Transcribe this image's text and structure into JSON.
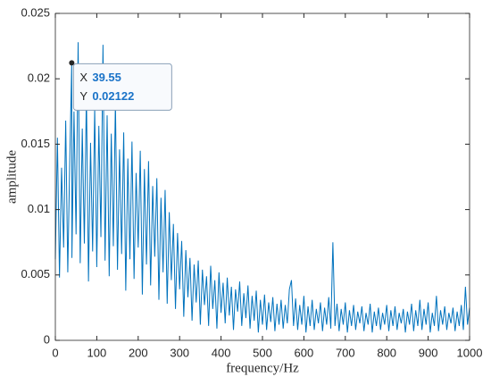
{
  "chart_data": {
    "type": "line",
    "xlabel": "frequency/Hz",
    "ylabel": "amplitude",
    "xlim": [
      0,
      1000
    ],
    "ylim": [
      0,
      0.025
    ],
    "xticks": [
      0,
      100,
      200,
      300,
      400,
      500,
      600,
      700,
      800,
      900,
      1000
    ],
    "yticks": [
      0,
      0.005,
      0.01,
      0.015,
      0.02,
      0.025
    ],
    "grid": false,
    "datatip": {
      "x_label": "X",
      "x": 39.55,
      "y_label": "Y",
      "y": 0.02122
    },
    "series": [
      {
        "color": "#0072bd",
        "x": [
          0,
          5,
          10,
          15,
          20,
          25,
          30,
          35,
          39.55,
          40,
          45,
          50,
          55,
          60,
          65,
          70,
          75,
          80,
          85,
          90,
          95,
          100,
          105,
          110,
          115,
          120,
          125,
          130,
          135,
          140,
          145,
          150,
          155,
          160,
          165,
          170,
          175,
          180,
          185,
          190,
          195,
          200,
          205,
          210,
          215,
          220,
          225,
          230,
          235,
          240,
          245,
          250,
          255,
          260,
          265,
          270,
          275,
          280,
          285,
          290,
          295,
          300,
          305,
          310,
          315,
          320,
          325,
          330,
          335,
          340,
          345,
          350,
          355,
          360,
          365,
          370,
          375,
          380,
          385,
          390,
          395,
          400,
          405,
          410,
          415,
          420,
          425,
          430,
          435,
          440,
          445,
          450,
          455,
          460,
          465,
          470,
          475,
          480,
          485,
          490,
          495,
          500,
          505,
          510,
          515,
          520,
          525,
          530,
          535,
          540,
          545,
          550,
          555,
          560,
          565,
          570,
          575,
          580,
          585,
          590,
          595,
          600,
          605,
          610,
          615,
          620,
          625,
          630,
          635,
          640,
          645,
          650,
          655,
          660,
          665,
          670,
          675,
          680,
          685,
          690,
          695,
          700,
          705,
          710,
          715,
          720,
          725,
          730,
          735,
          740,
          745,
          750,
          755,
          760,
          765,
          770,
          775,
          780,
          785,
          790,
          795,
          800,
          805,
          810,
          815,
          820,
          825,
          830,
          835,
          840,
          845,
          850,
          855,
          860,
          865,
          870,
          875,
          880,
          885,
          890,
          895,
          900,
          905,
          910,
          915,
          920,
          925,
          930,
          935,
          940,
          945,
          950,
          955,
          960,
          965,
          970,
          975,
          980,
          985,
          990,
          995,
          1000
        ],
        "values": [
          0.0062,
          0.0155,
          0.0048,
          0.0132,
          0.0071,
          0.0168,
          0.0052,
          0.0141,
          0.02122,
          0.0063,
          0.0175,
          0.0081,
          0.0228,
          0.0059,
          0.0162,
          0.0074,
          0.0189,
          0.0045,
          0.0151,
          0.0068,
          0.0178,
          0.0056,
          0.0164,
          0.0079,
          0.0226,
          0.0061,
          0.0172,
          0.0049,
          0.0158,
          0.0072,
          0.0183,
          0.0054,
          0.0146,
          0.0066,
          0.0159,
          0.0038,
          0.0139,
          0.0062,
          0.0152,
          0.0047,
          0.0128,
          0.0071,
          0.0145,
          0.0035,
          0.0131,
          0.0058,
          0.0137,
          0.0042,
          0.0118,
          0.0064,
          0.0124,
          0.0031,
          0.0109,
          0.0052,
          0.0115,
          0.0028,
          0.0098,
          0.0046,
          0.0089,
          0.0024,
          0.0082,
          0.0039,
          0.0076,
          0.0018,
          0.0069,
          0.0033,
          0.0063,
          0.0015,
          0.0058,
          0.0029,
          0.0061,
          0.0012,
          0.0054,
          0.0027,
          0.0049,
          0.0011,
          0.0057,
          0.0024,
          0.0046,
          0.0009,
          0.0052,
          0.0021,
          0.0044,
          0.0013,
          0.0048,
          0.0019,
          0.0041,
          0.0008,
          0.0039,
          0.0022,
          0.0045,
          0.0011,
          0.0036,
          0.0017,
          0.0042,
          0.0009,
          0.0034,
          0.0015,
          0.0038,
          0.0006,
          0.0031,
          0.0012,
          0.0035,
          0.0008,
          0.0029,
          0.0014,
          0.0033,
          0.0007,
          0.0028,
          0.0012,
          0.0031,
          0.0009,
          0.0027,
          0.0013,
          0.0039,
          0.0046,
          0.0011,
          0.0032,
          0.0008,
          0.0027,
          0.0012,
          0.0034,
          0.0006,
          0.0026,
          0.0011,
          0.0031,
          0.0008,
          0.0024,
          0.0013,
          0.0029,
          0.0007,
          0.0025,
          0.0012,
          0.0033,
          0.0009,
          0.0075,
          0.0011,
          0.0028,
          0.0007,
          0.0024,
          0.0012,
          0.0029,
          0.0006,
          0.0023,
          0.0011,
          0.0027,
          0.0008,
          0.0022,
          0.0013,
          0.0026,
          0.0007,
          0.0021,
          0.0012,
          0.0028,
          0.0006,
          0.0022,
          0.0011,
          0.0025,
          0.0008,
          0.0021,
          0.0012,
          0.0027,
          0.0007,
          0.0023,
          0.0011,
          0.0026,
          0.0008,
          0.0021,
          0.0013,
          0.0024,
          0.0006,
          0.0022,
          0.0012,
          0.0028,
          0.0007,
          0.0023,
          0.0011,
          0.0031,
          0.0008,
          0.0024,
          0.0012,
          0.0029,
          0.0006,
          0.0021,
          0.0011,
          0.0034,
          0.0007,
          0.0023,
          0.0012,
          0.0026,
          0.0008,
          0.0021,
          0.0013,
          0.0025,
          0.0007,
          0.0022,
          0.0011,
          0.0027,
          0.0008,
          0.0041,
          0.0012,
          0.0025
        ]
      }
    ]
  }
}
